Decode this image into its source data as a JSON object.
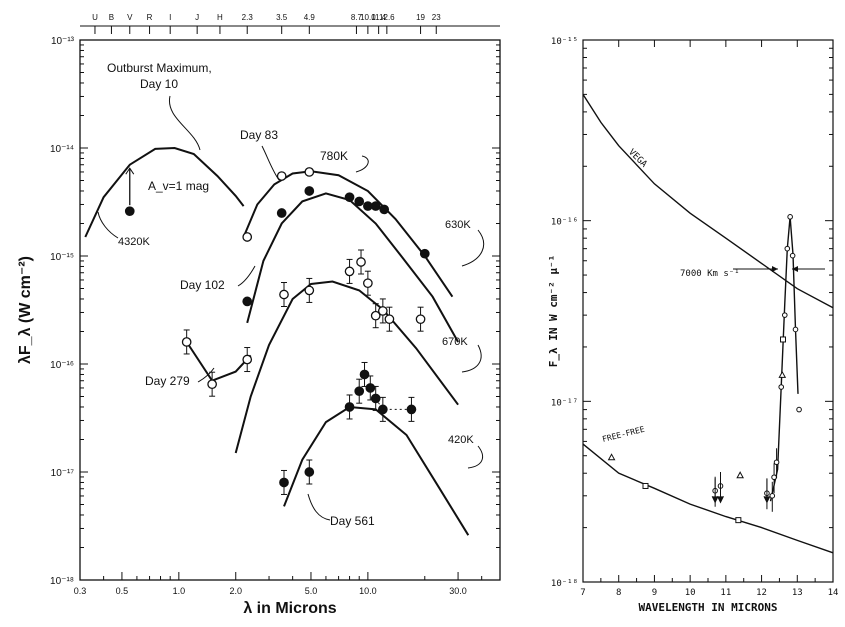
{
  "chart_data": [
    {
      "type": "line",
      "ylabel": "λF_λ (W cm⁻²)",
      "xlabel": "λ in Microns",
      "xscale": "log",
      "yscale": "log",
      "xlim": [
        0.3,
        50
      ],
      "ylim": [
        1e-18,
        1e-13
      ],
      "x_ticks": [
        "0.3",
        "0.5",
        "1.0",
        "2.0",
        "5.0",
        "10.0",
        "30.0"
      ],
      "y_ticks": [
        "10⁻¹³",
        "10⁻¹⁴",
        "10⁻¹⁵",
        "10⁻¹⁶",
        "10⁻¹⁷",
        "10⁻¹⁸"
      ],
      "top_bands": [
        {
          "label": "U",
          "x": 0.36
        },
        {
          "label": "B",
          "x": 0.44
        },
        {
          "label": "V",
          "x": 0.55
        },
        {
          "label": "R",
          "x": 0.7
        },
        {
          "label": "I",
          "x": 0.9
        },
        {
          "label": "J",
          "x": 1.25
        },
        {
          "label": "H",
          "x": 1.65
        },
        {
          "label": "2.3",
          "x": 2.3
        },
        {
          "label": "3.5",
          "x": 3.5
        },
        {
          "label": "4.9",
          "x": 4.9
        },
        {
          "label": "8.7",
          "x": 8.7
        },
        {
          "label": "10.0",
          "x": 10.0
        },
        {
          "label": "11.4",
          "x": 11.4
        },
        {
          "label": "12.6",
          "x": 12.6
        },
        {
          "label": "19",
          "x": 19
        },
        {
          "label": "23",
          "x": 23
        }
      ],
      "series": [
        {
          "name": "4320K",
          "marker": "line",
          "points": [
            [
              0.32,
              1.5e-15
            ],
            [
              0.4,
              3.5e-15
            ],
            [
              0.55,
              7e-15
            ],
            [
              0.75,
              9.8e-15
            ],
            [
              0.95,
              1e-14
            ],
            [
              1.2,
              8.8e-15
            ],
            [
              1.6,
              5.5e-15
            ],
            [
              2.0,
              3.6e-15
            ],
            [
              2.2,
              2.9e-15
            ]
          ]
        },
        {
          "name": "780K",
          "marker": "line",
          "points": [
            [
              2.2,
              1.5e-15
            ],
            [
              2.6,
              3e-15
            ],
            [
              3.2,
              4.6e-15
            ],
            [
              4.0,
              5.8e-15
            ],
            [
              5.0,
              6.1e-15
            ],
            [
              7.0,
              5.6e-15
            ],
            [
              10.0,
              4e-15
            ],
            [
              14,
              2.2e-15
            ],
            [
              20,
              1e-15
            ],
            [
              28,
              4.2e-16
            ]
          ]
        },
        {
          "name": "630K",
          "marker": "line",
          "points": [
            [
              2.3,
              2.4e-16
            ],
            [
              2.8,
              9e-16
            ],
            [
              3.5,
              2e-15
            ],
            [
              4.5,
              3.2e-15
            ],
            [
              6.0,
              3.8e-15
            ],
            [
              8.0,
              3.3e-15
            ],
            [
              11,
              2e-15
            ],
            [
              15,
              1e-15
            ],
            [
              22,
              4.2e-16
            ],
            [
              30,
              1.6e-16
            ]
          ]
        },
        {
          "name": "670K",
          "marker": "line",
          "points": [
            [
              2.0,
              1.5e-17
            ],
            [
              2.4,
              5e-17
            ],
            [
              3.0,
              1.5e-16
            ],
            [
              4.0,
              4e-16
            ],
            [
              5.0,
              5.5e-16
            ],
            [
              6.5,
              5.8e-16
            ],
            [
              9.0,
              4.8e-16
            ],
            [
              12,
              3.2e-16
            ],
            [
              18,
              1.4e-16
            ],
            [
              30,
              4.2e-17
            ]
          ]
        },
        {
          "name": "420K",
          "marker": "line",
          "points": [
            [
              3.6,
              4.8e-18
            ],
            [
              4.5,
              1.3e-17
            ],
            [
              6.0,
              2.9e-17
            ],
            [
              8.0,
              4e-17
            ],
            [
              11,
              3.8e-17
            ],
            [
              16,
              2.2e-17
            ],
            [
              24,
              7e-18
            ],
            [
              34,
              2.6e-18
            ]
          ]
        },
        {
          "name": "Day 279 rise",
          "marker": "line",
          "points": [
            [
              1.1,
              1.6e-16
            ],
            [
              1.5,
              7e-17
            ],
            [
              2.0,
              8.5e-17
            ],
            [
              2.4,
              1.2e-16
            ]
          ]
        },
        {
          "name": "Day 10",
          "marker": "filled",
          "points": [
            [
              0.55,
              2.6e-15
            ]
          ]
        },
        {
          "name": "Day 83",
          "marker": "open",
          "points": [
            [
              2.3,
              1.5e-15
            ],
            [
              3.5,
              5.5e-15
            ],
            [
              4.9,
              6e-15
            ]
          ]
        },
        {
          "name": "Day 102",
          "marker": "filled",
          "points": [
            [
              2.3,
              3.8e-16
            ],
            [
              3.5,
              2.5e-15
            ],
            [
              4.9,
              4e-15
            ],
            [
              8.0,
              3.5e-15
            ],
            [
              9.0,
              3.2e-15
            ],
            [
              10.0,
              2.9e-15
            ],
            [
              11.0,
              2.9e-15
            ],
            [
              12.2,
              2.7e-15
            ],
            [
              20,
              1.05e-15
            ]
          ]
        },
        {
          "name": "Day 279",
          "marker": "open",
          "points": [
            [
              1.1,
              1.6e-16
            ],
            [
              1.5,
              6.5e-17
            ],
            [
              2.3,
              1.1e-16
            ],
            [
              3.6,
              4.4e-16
            ],
            [
              4.9,
              4.8e-16
            ],
            [
              8.0,
              7.2e-16
            ],
            [
              9.2,
              8.8e-16
            ],
            [
              10.0,
              5.6e-16
            ],
            [
              11.0,
              2.8e-16
            ],
            [
              12.0,
              3.1e-16
            ],
            [
              13,
              2.6e-16
            ],
            [
              19,
              2.6e-16
            ]
          ]
        },
        {
          "name": "Day 561",
          "marker": "filled",
          "points": [
            [
              3.6,
              8e-18
            ],
            [
              4.9,
              1e-17
            ],
            [
              8.0,
              4e-17
            ],
            [
              9.0,
              5.6e-17
            ],
            [
              9.6,
              8e-17
            ],
            [
              10.3,
              6e-17
            ],
            [
              11,
              4.8e-17
            ],
            [
              12,
              3.8e-17
            ],
            [
              17,
              3.8e-17
            ]
          ]
        }
      ],
      "annotations": [
        "Outburst Maximum,",
        "Day 10",
        "A_v=1 mag",
        "4320K",
        "Day 83",
        "780K",
        "630K",
        "Day 102",
        "670K",
        "Day 279",
        "420K",
        "Day 561"
      ]
    },
    {
      "type": "line",
      "ylabel": "F_λ IN W cm⁻² μ⁻¹",
      "xlabel": "WAVELENGTH IN MICRONS",
      "yscale": "log",
      "xlim": [
        7,
        14
      ],
      "ylim": [
        1e-18,
        1e-15
      ],
      "x_ticks": [
        "7",
        "8",
        "9",
        "10",
        "11",
        "12",
        "13",
        "14"
      ],
      "y_ticks": [
        "10⁻¹⁵",
        "10⁻¹⁶",
        "10⁻¹⁷",
        "10⁻¹⁸"
      ],
      "series": [
        {
          "name": "VEGA",
          "marker": "line",
          "points": [
            [
              7,
              5e-16
            ],
            [
              7.5,
              3.5e-16
            ],
            [
              8.0,
              2.6e-16
            ],
            [
              9.0,
              1.6e-16
            ],
            [
              10.0,
              1.1e-16
            ],
            [
              11.0,
              8e-17
            ],
            [
              12.0,
              5.8e-17
            ],
            [
              13.0,
              4.2e-17
            ],
            [
              14.0,
              3.3e-17
            ]
          ]
        },
        {
          "name": "FREE-FREE",
          "marker": "line",
          "points": [
            [
              7,
              5.8e-18
            ],
            [
              8.0,
              4e-18
            ],
            [
              9.0,
              3.3e-18
            ],
            [
              10.0,
              2.7e-18
            ],
            [
              11.0,
              2.3e-18
            ],
            [
              12.0,
              2e-18
            ],
            [
              13.0,
              1.7e-18
            ],
            [
              14.0,
              1.45e-18
            ]
          ]
        },
        {
          "name": "line profile",
          "marker": "line",
          "points": [
            [
              12.25,
              2.8e-18
            ],
            [
              12.45,
              4.2e-18
            ],
            [
              12.55,
              1.2e-17
            ],
            [
              12.65,
              3.5e-17
            ],
            [
              12.72,
              7e-17
            ],
            [
              12.8,
              1.05e-16
            ],
            [
              12.88,
              6.5e-17
            ],
            [
              12.95,
              2.5e-17
            ],
            [
              13.02,
              1.1e-17
            ]
          ]
        },
        {
          "name": "circles",
          "marker": "open-circle",
          "points": [
            [
              10.7,
              3.2e-18
            ],
            [
              10.85,
              3.4e-18
            ],
            [
              12.15,
              3.1e-18
            ],
            [
              12.3,
              3e-18
            ],
            [
              12.35,
              3.8e-18
            ],
            [
              12.42,
              4.6e-18
            ],
            [
              12.55,
              1.2e-17
            ],
            [
              12.65,
              3e-17
            ],
            [
              12.72,
              7e-17
            ],
            [
              12.8,
              1.05e-16
            ],
            [
              12.87,
              6.4e-17
            ],
            [
              12.95,
              2.5e-17
            ],
            [
              13.05,
              9e-18
            ]
          ]
        },
        {
          "name": "triangles",
          "marker": "open-triangle",
          "points": [
            [
              7.8,
              4.9e-18
            ],
            [
              11.4,
              3.9e-18
            ],
            [
              12.58,
              1.4e-17
            ]
          ]
        },
        {
          "name": "squares",
          "marker": "open-square",
          "points": [
            [
              8.75,
              3.4e-18
            ],
            [
              11.35,
              2.2e-18
            ],
            [
              12.6,
              2.2e-17
            ]
          ]
        }
      ],
      "annotations": [
        "VEGA",
        "FREE-FREE",
        "7000 Km s⁻¹"
      ]
    }
  ]
}
